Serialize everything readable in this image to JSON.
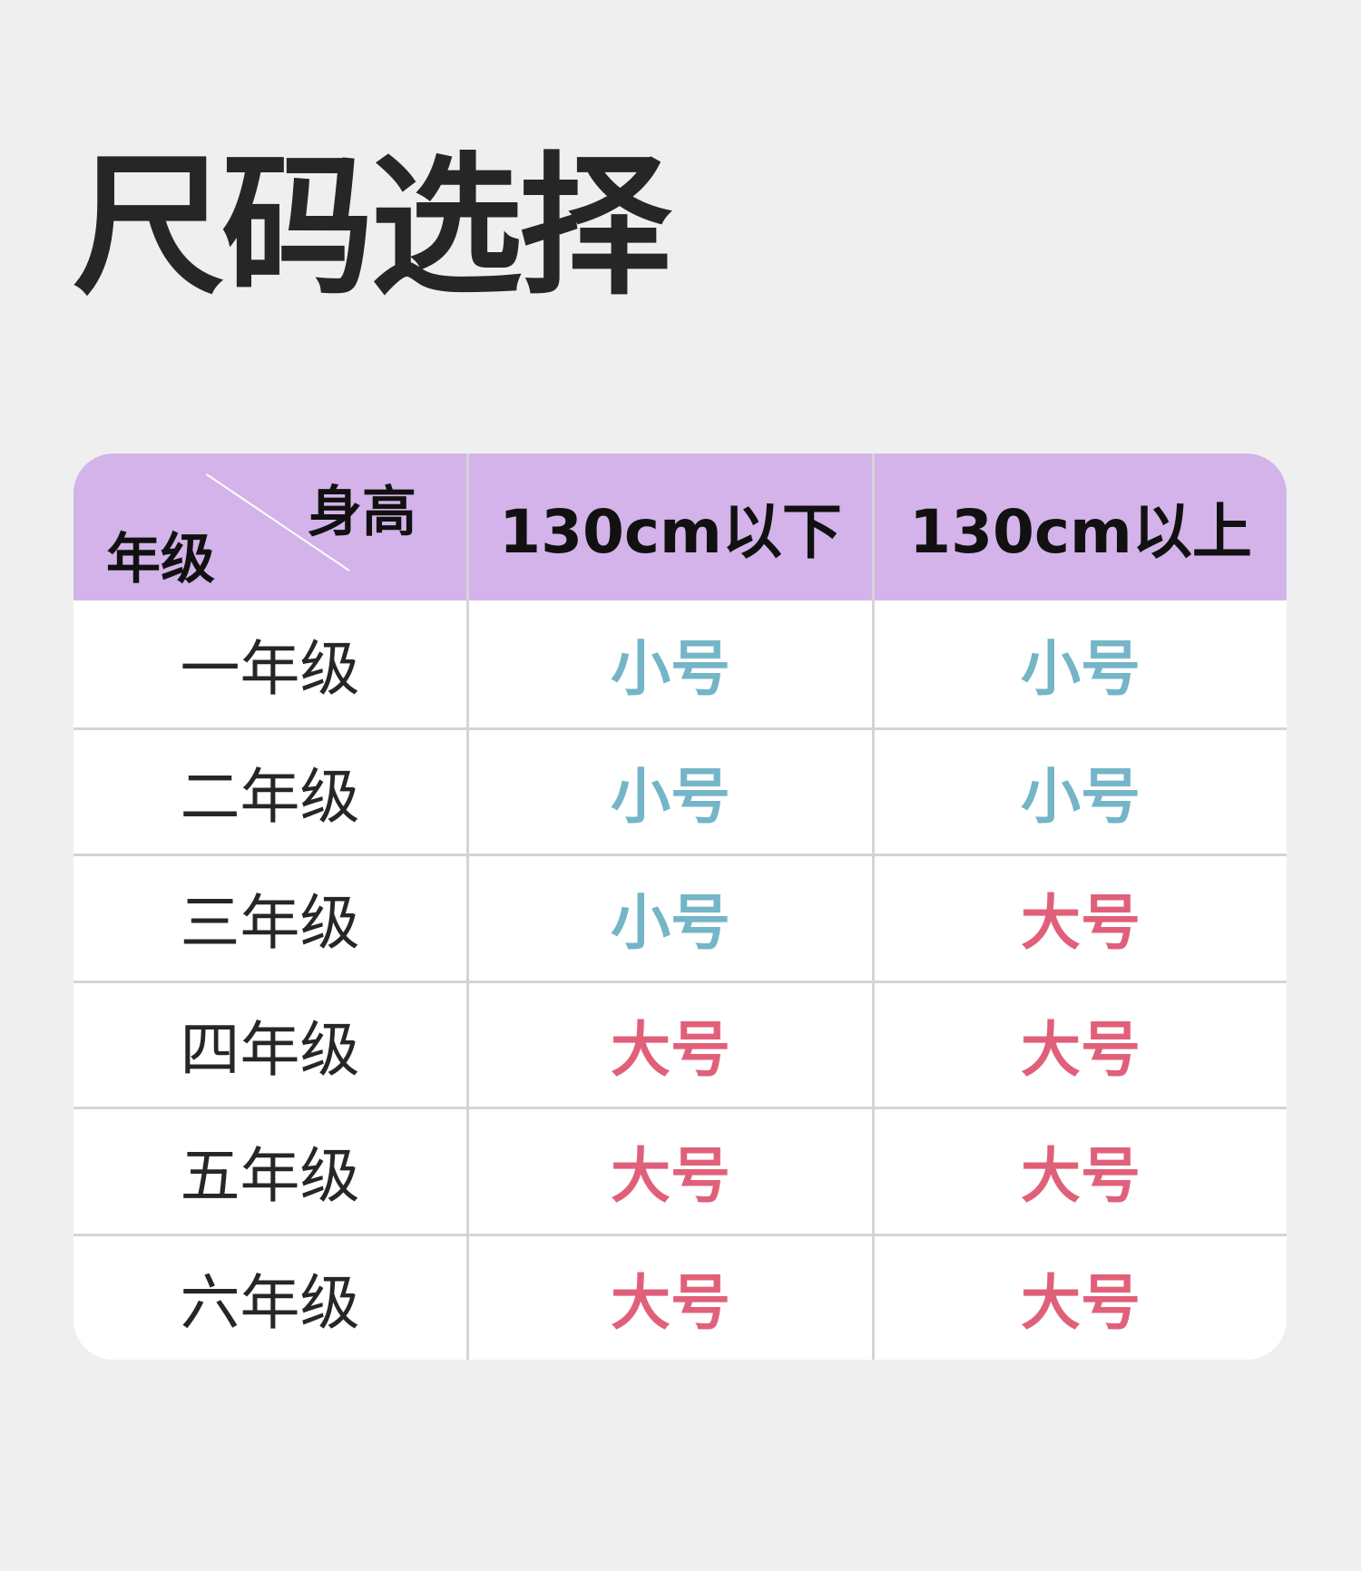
{
  "title": "尺码选择",
  "colors": {
    "header_bg": "#d3b3ea",
    "small": "#74b5c8",
    "large": "#e0607a",
    "background": "#efefef"
  },
  "table": {
    "corner": {
      "row_label": "年级",
      "col_label": "身高"
    },
    "columns": [
      "130cm以下",
      "130cm以上"
    ],
    "rows": [
      {
        "grade": "一年级",
        "values": [
          "小号",
          "小号"
        ],
        "kinds": [
          "small",
          "small"
        ]
      },
      {
        "grade": "二年级",
        "values": [
          "小号",
          "小号"
        ],
        "kinds": [
          "small",
          "small"
        ]
      },
      {
        "grade": "三年级",
        "values": [
          "小号",
          "大号"
        ],
        "kinds": [
          "small",
          "large"
        ]
      },
      {
        "grade": "四年级",
        "values": [
          "大号",
          "大号"
        ],
        "kinds": [
          "large",
          "large"
        ]
      },
      {
        "grade": "五年级",
        "values": [
          "大号",
          "大号"
        ],
        "kinds": [
          "large",
          "large"
        ]
      },
      {
        "grade": "六年级",
        "values": [
          "大号",
          "大号"
        ],
        "kinds": [
          "large",
          "large"
        ]
      }
    ]
  }
}
